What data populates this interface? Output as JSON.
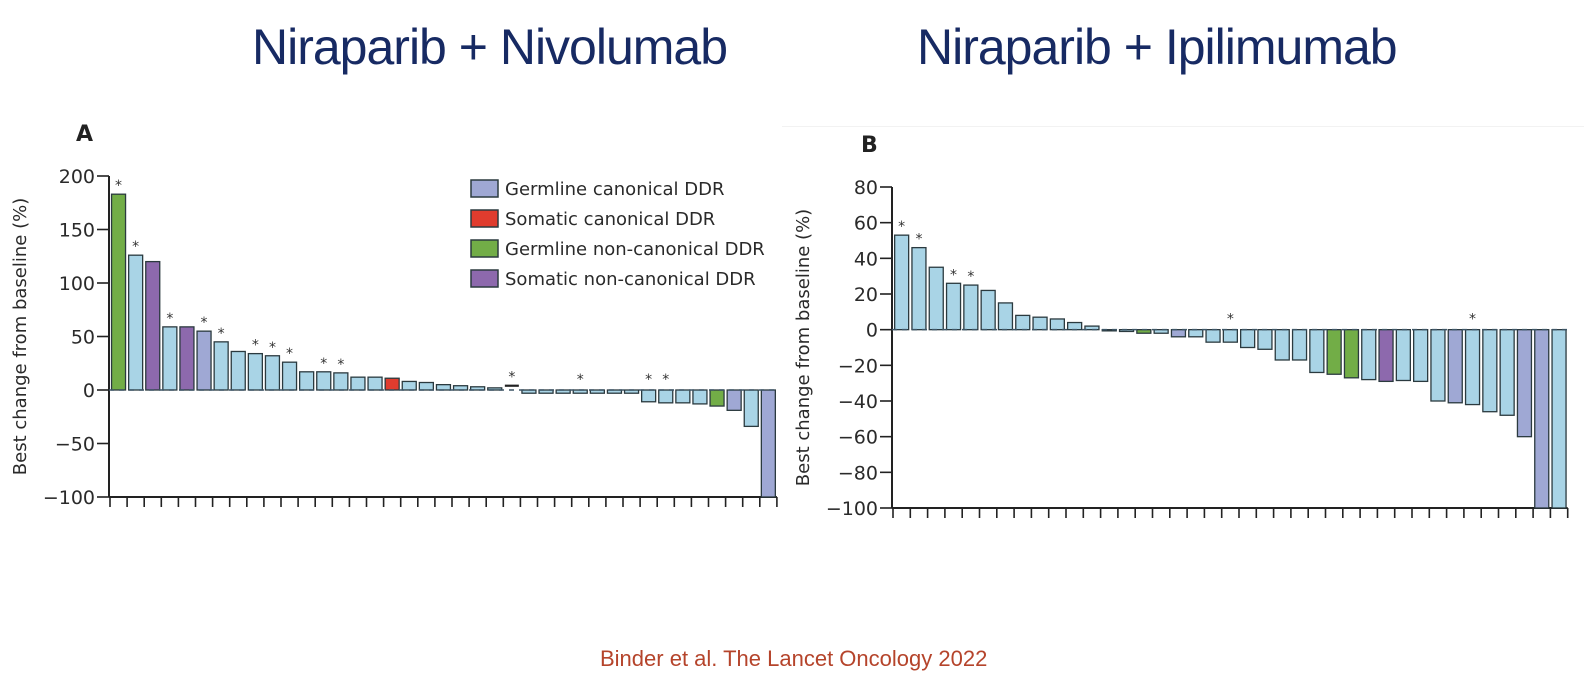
{
  "header": {
    "title_a": "Niraparib + Nivolumab",
    "title_b": "Niraparib + Ipilimumab"
  },
  "footer": {
    "citation": "Binder et al. The Lancet Oncology 2022"
  },
  "colors": {
    "other": "#a9d4e6",
    "germline_canonical": "#9fa8d4",
    "somatic_canonical": "#e03c2e",
    "germline_noncanonical": "#72ad47",
    "somatic_noncanonical": "#8d69ad",
    "outline": "#2b3a3f",
    "title": "#172a63",
    "citation": "#b5442b"
  },
  "legend": [
    {
      "key": "germline_canonical",
      "label": "Germline canonical DDR"
    },
    {
      "key": "somatic_canonical",
      "label": "Somatic canonical DDR"
    },
    {
      "key": "germline_noncanonical",
      "label": "Germline non-canonical DDR"
    },
    {
      "key": "somatic_noncanonical",
      "label": "Somatic non-canonical DDR"
    }
  ],
  "chart_data": [
    {
      "type": "bar",
      "panel": "A",
      "title": "Niraparib + Nivolumab",
      "xlabel": "",
      "ylabel": "Best change from baseline (%)",
      "ylim": [
        -100,
        200
      ],
      "yticks": [
        200,
        150,
        100,
        50,
        0,
        -50,
        -100
      ],
      "ytick_labels": [
        "200",
        "150",
        "100",
        "50",
        "0",
        "−50",
        "−100"
      ],
      "legend_position": "top-right",
      "reference_line": 0,
      "values": [
        183,
        126,
        120,
        59,
        59,
        55,
        45,
        36,
        34,
        32,
        26,
        17,
        17,
        16,
        12,
        12,
        11,
        8,
        7,
        5,
        4,
        3,
        2,
        4,
        -3,
        -3,
        -3,
        -3,
        -3,
        -3,
        -3,
        -11,
        -12,
        -12,
        -13,
        -15,
        -19,
        -34,
        -100
      ],
      "groups": [
        "germline_noncanonical",
        "other",
        "somatic_noncanonical",
        "other",
        "somatic_noncanonical",
        "germline_canonical",
        "other",
        "other",
        "other",
        "other",
        "other",
        "other",
        "other",
        "other",
        "other",
        "other",
        "somatic_canonical",
        "other",
        "other",
        "other",
        "other",
        "other",
        "other",
        "line",
        "other",
        "other",
        "other",
        "other",
        "other",
        "other",
        "other",
        "other",
        "other",
        "other",
        "other",
        "germline_noncanonical",
        "germline_canonical",
        "other",
        "germline_canonical"
      ],
      "starred": [
        true,
        true,
        false,
        true,
        false,
        true,
        true,
        false,
        true,
        true,
        true,
        false,
        true,
        true,
        false,
        false,
        false,
        false,
        false,
        false,
        false,
        false,
        false,
        true,
        false,
        false,
        false,
        true,
        false,
        false,
        false,
        true,
        true,
        false,
        false,
        false,
        false,
        false,
        false
      ]
    },
    {
      "type": "bar",
      "panel": "B",
      "title": "Niraparib + Ipilimumab",
      "xlabel": "",
      "ylabel": "Best change from baseline (%)",
      "ylim": [
        -100,
        80
      ],
      "yticks": [
        80,
        60,
        40,
        20,
        0,
        -20,
        -40,
        -60,
        -80,
        -100
      ],
      "ytick_labels": [
        "80",
        "60",
        "40",
        "20",
        "0",
        "−20",
        "−40",
        "−60",
        "−80",
        "−100"
      ],
      "reference_line": 0,
      "values": [
        53,
        46,
        35,
        26,
        25,
        22,
        15,
        8,
        7,
        6,
        4,
        2,
        0,
        -1,
        -2,
        -2,
        -4,
        -4,
        -7,
        -7,
        -10,
        -11,
        -17,
        -17,
        -24,
        -25,
        -27,
        -28,
        -29,
        -28.5,
        -29,
        -40,
        -41,
        -42,
        -46,
        -48,
        -60,
        -100,
        -100
      ],
      "groups": [
        "other",
        "other",
        "other",
        "other",
        "other",
        "other",
        "other",
        "other",
        "other",
        "other",
        "other",
        "other",
        "other",
        "other",
        "germline_noncanonical",
        "other",
        "germline_canonical",
        "other",
        "other",
        "other",
        "other",
        "other",
        "other",
        "other",
        "other",
        "germline_noncanonical",
        "germline_noncanonical",
        "other",
        "somatic_noncanonical",
        "other",
        "other",
        "other",
        "germline_canonical",
        "other",
        "other",
        "other",
        "germline_canonical",
        "germline_canonical",
        "other"
      ],
      "starred": [
        true,
        true,
        false,
        true,
        true,
        false,
        false,
        false,
        false,
        false,
        false,
        false,
        false,
        false,
        false,
        false,
        false,
        false,
        false,
        true,
        false,
        false,
        false,
        false,
        false,
        false,
        false,
        false,
        false,
        false,
        false,
        false,
        false,
        true,
        false,
        false,
        false,
        false,
        false
      ]
    }
  ]
}
